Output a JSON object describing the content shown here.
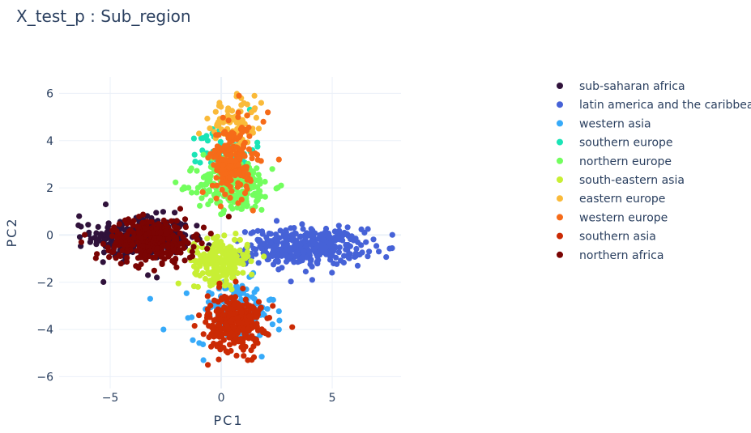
{
  "chart_data": {
    "type": "scatter",
    "title": "X_test_p : Sub_region",
    "xlabel": "PC1",
    "ylabel": "PC2",
    "xlim": [
      -7.3,
      8.1
    ],
    "ylim": [
      -6.5,
      6.7
    ],
    "xticks": [
      -5,
      0,
      5
    ],
    "xtick_labels": [
      "−5",
      "0",
      "5"
    ],
    "yticks": [
      -6,
      -4,
      -2,
      0,
      2,
      4,
      6
    ],
    "ytick_labels": [
      "−6",
      "−4",
      "−2",
      "0",
      "2",
      "4",
      "6"
    ],
    "grid": true,
    "legend_position": "right",
    "series": [
      {
        "name": "sub-saharan africa",
        "color": "#30123b",
        "cluster": {
          "center": [
            -3.6,
            -0.1
          ],
          "spread": [
            1.1,
            0.45
          ],
          "n": 320
        },
        "points": [
          [
            -6.4,
            0.8
          ],
          [
            -5.2,
            1.3
          ],
          [
            -2.9,
            -1.8
          ],
          [
            -3.3,
            -1.7
          ],
          [
            -1.1,
            0.4
          ],
          [
            -5.9,
            -0.3
          ]
        ]
      },
      {
        "name": "latin america and the caribbean",
        "color": "#4662d7",
        "cluster": {
          "center": [
            3.8,
            -0.5
          ],
          "spread": [
            1.3,
            0.38
          ],
          "n": 360
        },
        "points": [
          [
            2.5,
            0.6
          ],
          [
            6.6,
            -0.9
          ],
          [
            7.1,
            -0.7
          ],
          [
            1.2,
            -1.1
          ],
          [
            4.1,
            -1.9
          ],
          [
            5.3,
            0.4
          ]
        ]
      },
      {
        "name": "western asia",
        "color": "#36aaf9",
        "cluster": {
          "center": [
            0.6,
            -3.2
          ],
          "spread": [
            0.9,
            0.65
          ],
          "n": 140
        },
        "points": [
          [
            -3.2,
            -2.7
          ],
          [
            -2.6,
            -4.0
          ],
          [
            -0.8,
            -5.3
          ],
          [
            2.6,
            -4.0
          ],
          [
            0.6,
            -1.6
          ],
          [
            1.6,
            -2.3
          ]
        ]
      },
      {
        "name": "southern europe",
        "color": "#1ae4b6",
        "cluster": {
          "center": [
            0.3,
            3.6
          ],
          "spread": [
            0.6,
            0.5
          ],
          "n": 90
        },
        "points": [
          [
            -1.2,
            3.4
          ],
          [
            1.3,
            2.5
          ],
          [
            -0.9,
            4.1
          ],
          [
            -0.4,
            4.3
          ]
        ]
      },
      {
        "name": "northern europe",
        "color": "#72fe5e",
        "cluster": {
          "center": [
            0.6,
            2.1
          ],
          "spread": [
            0.85,
            0.55
          ],
          "n": 230
        },
        "points": [
          [
            -1.1,
            1.8
          ],
          [
            2.3,
            2.8
          ],
          [
            2.7,
            2.1
          ],
          [
            -0.8,
            3.4
          ],
          [
            0.9,
            1.1
          ]
        ]
      },
      {
        "name": "south-eastern asia",
        "color": "#c8ef34",
        "cluster": {
          "center": [
            0.0,
            -1.1
          ],
          "spread": [
            0.6,
            0.45
          ],
          "n": 220
        },
        "points": [
          [
            -1.1,
            -1.5
          ],
          [
            1.2,
            -0.9
          ],
          [
            -0.4,
            -2.1
          ],
          [
            0.6,
            -0.2
          ]
        ]
      },
      {
        "name": "eastern europe",
        "color": "#faba39",
        "cluster": {
          "center": [
            0.6,
            4.6
          ],
          "spread": [
            0.55,
            0.55
          ],
          "n": 95
        },
        "points": [
          [
            -1.0,
            4.3
          ],
          [
            1.5,
            5.9
          ],
          [
            1.8,
            5.6
          ],
          [
            0.9,
            5.8
          ]
        ]
      },
      {
        "name": "western europe",
        "color": "#f66b19",
        "cluster": {
          "center": [
            0.5,
            3.2
          ],
          "spread": [
            0.45,
            0.75
          ],
          "n": 210
        },
        "points": [
          [
            0.8,
            5.9
          ],
          [
            2.6,
            3.2
          ],
          [
            1.9,
            4.8
          ],
          [
            2.1,
            5.2
          ],
          [
            -0.2,
            2.1
          ]
        ]
      },
      {
        "name": "southern asia",
        "color": "#cb2a04",
        "cluster": {
          "center": [
            0.6,
            -3.7
          ],
          "spread": [
            0.6,
            0.6
          ],
          "n": 320
        },
        "points": [
          [
            3.2,
            -3.9
          ],
          [
            -0.6,
            -5.5
          ],
          [
            1.2,
            -5.3
          ],
          [
            -1.0,
            -3.4
          ],
          [
            2.1,
            -4.2
          ]
        ]
      },
      {
        "name": "northern africa",
        "color": "#7a0403",
        "cluster": {
          "center": [
            -3.1,
            -0.2
          ],
          "spread": [
            0.95,
            0.45
          ],
          "n": 330
        },
        "points": [
          [
            -6.3,
            -0.3
          ],
          [
            -5.6,
            -0.8
          ],
          [
            -1.3,
            -0.9
          ],
          [
            -2.0,
            0.6
          ],
          [
            -4.9,
            0.2
          ]
        ]
      }
    ]
  }
}
